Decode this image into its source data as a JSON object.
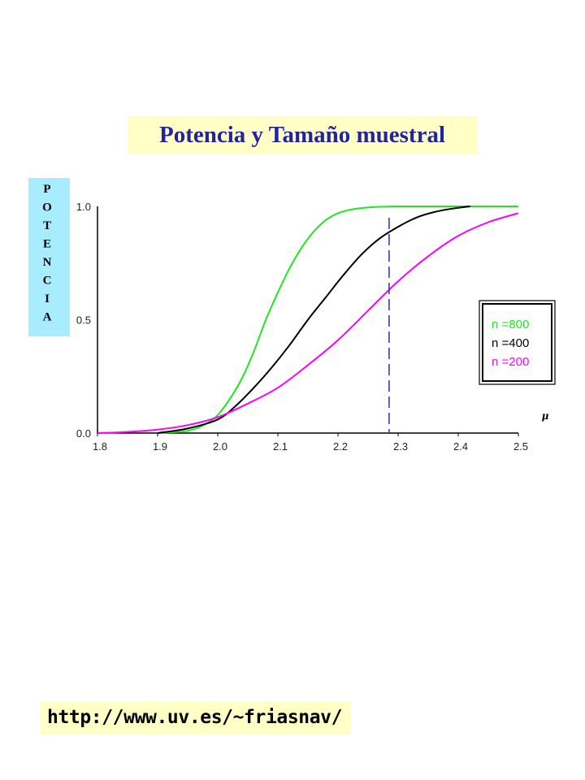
{
  "colors": {
    "title_bg": "#ffffc6",
    "title_text": "#2323a0",
    "ylabel_bg": "#a7ecff",
    "url_bg": "#ffffc6",
    "threshold_line": "#3a3ab0"
  },
  "url": "http://www.uv.es/~friasnav/",
  "chart_data": {
    "type": "line",
    "title": "Potencia y Tamaño muestral",
    "xlabel": "μ",
    "ylabel": "POTENCIA",
    "xlim": [
      1.8,
      2.5
    ],
    "ylim": [
      0.0,
      1.0
    ],
    "x_ticks": [
      1.8,
      1.9,
      2.0,
      2.1,
      2.2,
      2.3,
      2.4,
      2.5
    ],
    "x_tick_labels": [
      "1.8",
      "1.9",
      "2.0",
      "2.1",
      "2.2",
      "2.3",
      "2.4",
      "2.5"
    ],
    "y_ticks": [
      0.0,
      0.5,
      1.0
    ],
    "y_tick_labels": [
      "0.0",
      "0.5",
      "1.0"
    ],
    "grid": false,
    "legend_position": "right",
    "threshold_x": 2.285,
    "series": [
      {
        "name": "n =800",
        "color": "#1ee81e",
        "x": [
          1.9,
          1.95,
          1.98,
          2.0,
          2.02,
          2.04,
          2.06,
          2.08,
          2.1,
          2.12,
          2.14,
          2.16,
          2.18,
          2.2,
          2.22,
          2.24,
          2.26,
          2.28,
          2.3,
          2.35,
          2.4,
          2.45,
          2.5
        ],
        "values": [
          0.0,
          0.01,
          0.04,
          0.08,
          0.15,
          0.24,
          0.36,
          0.5,
          0.62,
          0.73,
          0.82,
          0.89,
          0.94,
          0.97,
          0.985,
          0.993,
          0.997,
          0.999,
          1.0,
          1.0,
          1.0,
          1.0,
          1.0
        ]
      },
      {
        "name": "n =400",
        "color": "#000000",
        "x": [
          1.9,
          1.95,
          2.0,
          2.03,
          2.06,
          2.09,
          2.12,
          2.15,
          2.18,
          2.21,
          2.24,
          2.27,
          2.3,
          2.33,
          2.36,
          2.39,
          2.42
        ],
        "values": [
          0.0,
          0.02,
          0.06,
          0.12,
          0.2,
          0.29,
          0.39,
          0.5,
          0.6,
          0.7,
          0.79,
          0.86,
          0.91,
          0.95,
          0.975,
          0.99,
          1.0
        ]
      },
      {
        "name": "n =200",
        "color": "#ff00ff",
        "x": [
          1.8,
          1.85,
          1.9,
          1.95,
          2.0,
          2.05,
          2.1,
          2.15,
          2.2,
          2.25,
          2.3,
          2.35,
          2.4,
          2.45,
          2.5
        ],
        "values": [
          0.0,
          0.005,
          0.015,
          0.035,
          0.07,
          0.13,
          0.2,
          0.3,
          0.41,
          0.54,
          0.67,
          0.78,
          0.87,
          0.93,
          0.97
        ]
      }
    ]
  }
}
